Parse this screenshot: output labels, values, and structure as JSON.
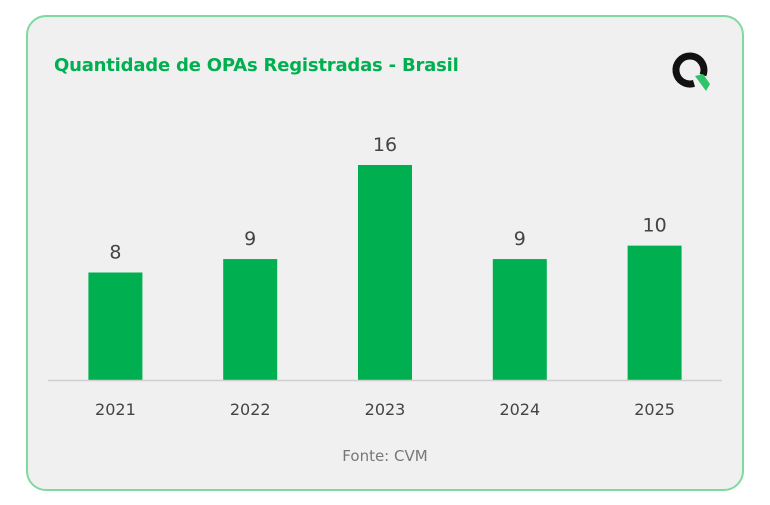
{
  "title": "Quantidade de OPAs Registradas - Brasil",
  "source": "Fonte: CVM",
  "colors": {
    "bar": "#00b050",
    "title": "#00b050",
    "border": "#7fd9a0",
    "background": "#f0f0f0"
  },
  "logo": {
    "icon": "q-leaf-logo"
  },
  "chart_data": {
    "type": "bar",
    "title": "Quantidade de OPAs Registradas - Brasil",
    "categories": [
      "2021",
      "2022",
      "2023",
      "2024",
      "2025"
    ],
    "values": [
      8,
      9,
      16,
      9,
      10
    ],
    "data_labels": [
      "8",
      "9",
      "16",
      "9",
      "10"
    ],
    "xlabel": "",
    "ylabel": "",
    "ylim": [
      0,
      16
    ],
    "grid": false,
    "legend": "none"
  }
}
